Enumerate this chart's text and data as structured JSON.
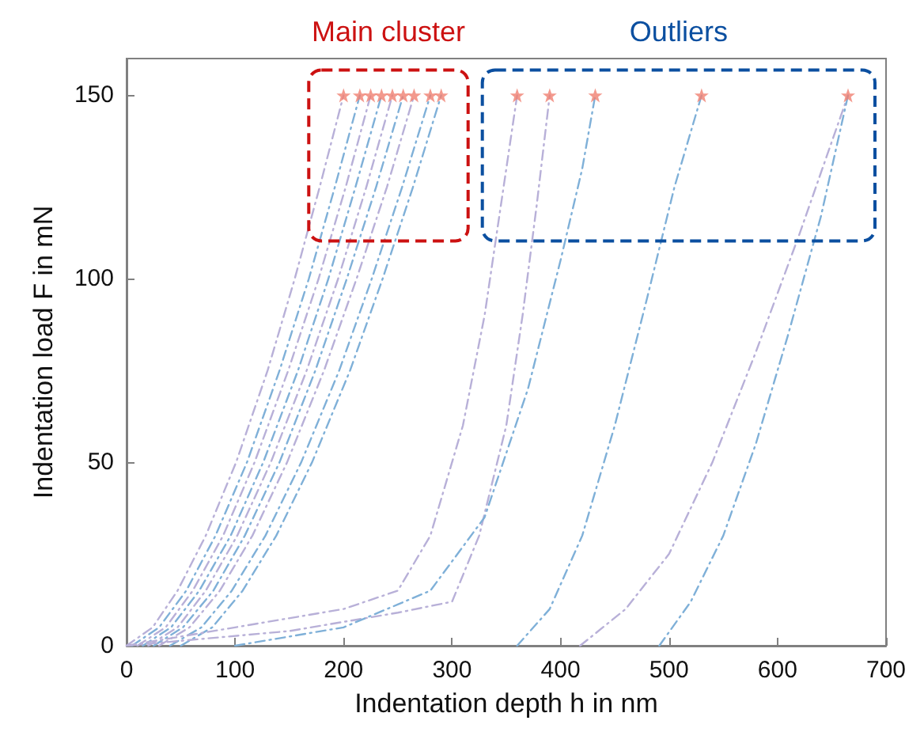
{
  "chart_data": {
    "type": "line",
    "xlabel": "Indentation depth h in nm",
    "ylabel": "Indentation load F in mN",
    "xlim": [
      0,
      700
    ],
    "xticks": [
      0,
      100,
      200,
      300,
      400,
      500,
      600,
      700
    ],
    "ylim": [
      0,
      160
    ],
    "yticks": [
      0,
      50,
      100,
      150
    ],
    "grid": false,
    "line_style": "dashed",
    "marker": "none",
    "annotations": [
      "Main cluster",
      "Outliers"
    ],
    "series": [
      {
        "color": "#b8b0d8",
        "x": [
          0,
          24,
          47,
          73,
          101,
          130,
          155,
          178,
          200
        ],
        "values": [
          0,
          5,
          15,
          30,
          50,
          75,
          100,
          125,
          150
        ]
      },
      {
        "color": "#7fb0d8",
        "x": [
          5,
          30,
          55,
          82,
          111,
          141,
          168,
          192,
          215
        ],
        "values": [
          0,
          5,
          15,
          30,
          50,
          75,
          100,
          125,
          150
        ]
      },
      {
        "color": "#b8b0d8",
        "x": [
          10,
          36,
          61,
          89,
          118,
          149,
          177,
          202,
          225
        ],
        "values": [
          0,
          5,
          15,
          30,
          50,
          75,
          100,
          125,
          150
        ]
      },
      {
        "color": "#7fb0d8",
        "x": [
          15,
          41,
          67,
          96,
          126,
          158,
          186,
          211,
          235
        ],
        "values": [
          0,
          5,
          15,
          30,
          50,
          75,
          100,
          125,
          150
        ]
      },
      {
        "color": "#b8b0d8",
        "x": [
          20,
          47,
          73,
          102,
          133,
          166,
          195,
          221,
          245
        ],
        "values": [
          0,
          5,
          15,
          30,
          50,
          75,
          100,
          125,
          150
        ]
      },
      {
        "color": "#7fb0d8",
        "x": [
          25,
          52,
          80,
          109,
          141,
          174,
          203,
          230,
          255
        ],
        "values": [
          0,
          5,
          15,
          30,
          50,
          75,
          100,
          125,
          150
        ]
      },
      {
        "color": "#b8b0d8",
        "x": [
          30,
          58,
          86,
          116,
          148,
          182,
          212,
          240,
          265
        ],
        "values": [
          0,
          5,
          15,
          30,
          50,
          75,
          100,
          125,
          150
        ]
      },
      {
        "color": "#7fb0d8",
        "x": [
          40,
          69,
          97,
          128,
          161,
          196,
          226,
          254,
          280
        ],
        "values": [
          0,
          5,
          15,
          30,
          50,
          75,
          100,
          125,
          150
        ]
      },
      {
        "color": "#7fb0d8",
        "x": [
          50,
          79,
          107,
          138,
          171,
          206,
          236,
          264,
          290
        ],
        "values": [
          0,
          5,
          15,
          30,
          50,
          75,
          100,
          125,
          150
        ]
      },
      {
        "color": "#b8b0d8",
        "x": [
          0,
          100,
          200,
          250,
          280,
          310,
          330,
          345,
          360
        ],
        "values": [
          0,
          5,
          10,
          15,
          30,
          60,
          90,
          120,
          150
        ]
      },
      {
        "color": "#b8b0d8",
        "x": [
          0,
          150,
          250,
          300,
          325,
          350,
          365,
          378,
          390
        ],
        "values": [
          0,
          4,
          9,
          12,
          30,
          60,
          90,
          120,
          150
        ]
      },
      {
        "color": "#7fb0d8",
        "x": [
          100,
          200,
          280,
          330,
          370,
          400,
          420,
          432
        ],
        "values": [
          0,
          5,
          15,
          35,
          70,
          105,
          130,
          150
        ]
      },
      {
        "color": "#7fb0d8",
        "x": [
          360,
          390,
          420,
          450,
          480,
          505,
          530
        ],
        "values": [
          0,
          10,
          30,
          60,
          95,
          125,
          150
        ]
      },
      {
        "color": "#b8b0d8",
        "x": [
          418,
          460,
          500,
          540,
          580,
          620,
          665
        ],
        "values": [
          0,
          10,
          25,
          50,
          80,
          112,
          150
        ]
      },
      {
        "color": "#7fb0d8",
        "x": [
          491,
          520,
          550,
          580,
          610,
          640,
          665
        ],
        "values": [
          0,
          12,
          30,
          55,
          85,
          117,
          150
        ]
      },
      {
        "type": "scatter",
        "marker": "star",
        "color": "#f08070",
        "x": [
          200,
          215,
          225,
          235,
          245,
          255,
          265,
          280,
          290,
          360,
          390,
          432,
          530,
          665
        ],
        "values": [
          150,
          150,
          150,
          150,
          150,
          150,
          150,
          150,
          150,
          150,
          150,
          150,
          150,
          150
        ]
      }
    ]
  }
}
